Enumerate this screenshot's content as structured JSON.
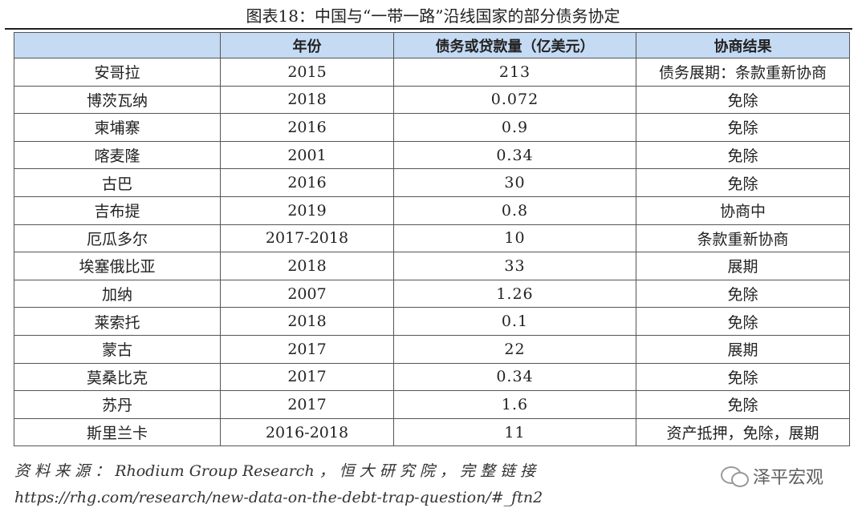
{
  "figure": {
    "title": "图表18：中国与“一带一路”沿线国家的部分债务协定"
  },
  "table": {
    "headers": [
      "",
      "年份",
      "债务或贷款量（亿美元）",
      "协商结果"
    ],
    "rows": [
      {
        "country": "安哥拉",
        "year": "2015",
        "amount": "213",
        "result": "债务展期：条款重新协商"
      },
      {
        "country": "博茨瓦纳",
        "year": "2018",
        "amount": "0.072",
        "result": "免除"
      },
      {
        "country": "柬埔寨",
        "year": "2016",
        "amount": "0.9",
        "result": "免除"
      },
      {
        "country": "喀麦隆",
        "year": "2001",
        "amount": "0.34",
        "result": "免除"
      },
      {
        "country": "古巴",
        "year": "2016",
        "amount": "30",
        "result": "免除"
      },
      {
        "country": "吉布提",
        "year": "2019",
        "amount": "0.8",
        "result": "协商中"
      },
      {
        "country": "厄瓜多尔",
        "year": "2017-2018",
        "amount": "10",
        "result": "条款重新协商"
      },
      {
        "country": "埃塞俄比亚",
        "year": "2018",
        "amount": "33",
        "result": "展期"
      },
      {
        "country": "加纳",
        "year": "2007",
        "amount": "1.26",
        "result": "免除"
      },
      {
        "country": "莱索托",
        "year": "2018",
        "amount": "0.1",
        "result": "免除"
      },
      {
        "country": "蒙古",
        "year": "2017",
        "amount": "22",
        "result": "展期"
      },
      {
        "country": "莫桑比克",
        "year": "2017",
        "amount": "0.34",
        "result": "免除"
      },
      {
        "country": "苏丹",
        "year": "2017",
        "amount": "1.6",
        "result": "免除"
      },
      {
        "country": "斯里兰卡",
        "year": "2016-2018",
        "amount": "11",
        "result": "资产抵押，免除，展期"
      }
    ]
  },
  "source": {
    "text": "资 料 来 源 ： Rhodium Group Research ， 恒 大 研 究 院 ， 完 整 链 接",
    "url": "https://rhg.com/research/new-data-on-the-debt-trap-question/#_ftn2"
  },
  "watermark": {
    "text": "泽平宏观",
    "icon": "wechat-icon"
  }
}
